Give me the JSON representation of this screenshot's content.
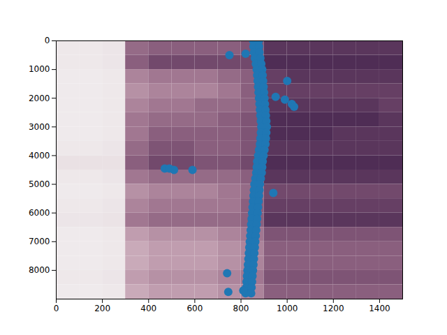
{
  "chart_data": {
    "type": "heatmap",
    "xlim": [
      0,
      1500
    ],
    "xticks": [
      0,
      200,
      400,
      600,
      800,
      1000,
      1200,
      1400
    ],
    "ylim": [
      0,
      9000
    ],
    "yticks": [
      0,
      1000,
      2000,
      3000,
      4000,
      5000,
      6000,
      7000,
      8000
    ],
    "grid": false,
    "cell_range": [
      0,
      1
    ],
    "cells": {
      "x_edges": [
        0,
        100,
        200,
        300,
        400,
        500,
        600,
        700,
        800,
        900,
        1000,
        1100,
        1200,
        1300,
        1400,
        1500
      ],
      "y_edges": [
        0,
        500,
        1000,
        1500,
        2000,
        2500,
        3000,
        3500,
        4000,
        4500,
        5000,
        5500,
        6000,
        6500,
        7000,
        7500,
        8000,
        8500,
        9000
      ],
      "values": [
        [
          0.05,
          0.05,
          0.06,
          0.55,
          0.6,
          0.6,
          0.6,
          0.6,
          0.65,
          0.8,
          0.8,
          0.8,
          0.8,
          0.8,
          0.8
        ],
        [
          0.05,
          0.05,
          0.06,
          0.6,
          0.7,
          0.7,
          0.7,
          0.7,
          0.7,
          0.85,
          0.85,
          0.85,
          0.85,
          0.85,
          0.85
        ],
        [
          0.04,
          0.04,
          0.05,
          0.45,
          0.5,
          0.5,
          0.5,
          0.55,
          0.6,
          0.75,
          0.8,
          0.8,
          0.8,
          0.8,
          0.8
        ],
        [
          0.04,
          0.04,
          0.05,
          0.4,
          0.45,
          0.45,
          0.45,
          0.5,
          0.6,
          0.75,
          0.75,
          0.75,
          0.75,
          0.75,
          0.75
        ],
        [
          0.04,
          0.04,
          0.05,
          0.45,
          0.5,
          0.5,
          0.55,
          0.55,
          0.6,
          0.8,
          0.8,
          0.8,
          0.8,
          0.8,
          0.75
        ],
        [
          0.04,
          0.04,
          0.05,
          0.5,
          0.55,
          0.55,
          0.55,
          0.6,
          0.65,
          0.85,
          0.85,
          0.85,
          0.85,
          0.85,
          0.8
        ],
        [
          0.04,
          0.04,
          0.05,
          0.5,
          0.6,
          0.6,
          0.6,
          0.6,
          0.65,
          0.85,
          0.85,
          0.85,
          0.8,
          0.8,
          0.8
        ],
        [
          0.05,
          0.05,
          0.06,
          0.55,
          0.65,
          0.65,
          0.6,
          0.6,
          0.65,
          0.8,
          0.8,
          0.8,
          0.8,
          0.8,
          0.8
        ],
        [
          0.08,
          0.08,
          0.08,
          0.6,
          0.7,
          0.7,
          0.65,
          0.65,
          0.7,
          0.85,
          0.85,
          0.85,
          0.85,
          0.85,
          0.85
        ],
        [
          0.05,
          0.05,
          0.06,
          0.5,
          0.55,
          0.55,
          0.55,
          0.55,
          0.6,
          0.8,
          0.8,
          0.8,
          0.8,
          0.8,
          0.8
        ],
        [
          0.04,
          0.04,
          0.05,
          0.4,
          0.45,
          0.45,
          0.45,
          0.5,
          0.55,
          0.7,
          0.7,
          0.7,
          0.7,
          0.7,
          0.7
        ],
        [
          0.05,
          0.05,
          0.06,
          0.45,
          0.5,
          0.5,
          0.5,
          0.5,
          0.6,
          0.75,
          0.75,
          0.75,
          0.75,
          0.75,
          0.75
        ],
        [
          0.06,
          0.06,
          0.07,
          0.5,
          0.55,
          0.55,
          0.55,
          0.55,
          0.6,
          0.8,
          0.8,
          0.8,
          0.8,
          0.8,
          0.8
        ],
        [
          0.04,
          0.04,
          0.05,
          0.35,
          0.4,
          0.4,
          0.4,
          0.45,
          0.5,
          0.65,
          0.65,
          0.65,
          0.65,
          0.65,
          0.65
        ],
        [
          0.04,
          0.04,
          0.05,
          0.3,
          0.35,
          0.35,
          0.35,
          0.4,
          0.45,
          0.6,
          0.6,
          0.6,
          0.6,
          0.6,
          0.6
        ],
        [
          0.04,
          0.04,
          0.05,
          0.3,
          0.35,
          0.35,
          0.35,
          0.4,
          0.45,
          0.6,
          0.6,
          0.6,
          0.6,
          0.6,
          0.6
        ],
        [
          0.05,
          0.05,
          0.06,
          0.35,
          0.4,
          0.4,
          0.4,
          0.45,
          0.5,
          0.65,
          0.65,
          0.65,
          0.65,
          0.65,
          0.65
        ],
        [
          0.04,
          0.04,
          0.05,
          0.3,
          0.35,
          0.35,
          0.35,
          0.4,
          0.45,
          0.6,
          0.6,
          0.6,
          0.6,
          0.6,
          0.6
        ]
      ]
    },
    "points": {
      "color": "#1f77b4",
      "marker": "circle",
      "x": [
        853,
        877,
        854,
        878,
        856,
        880,
        860,
        884,
        864,
        888,
        868,
        892,
        870,
        894,
        872,
        896,
        874,
        898,
        876,
        900,
        878,
        902,
        880,
        904,
        882,
        906,
        884,
        908,
        886,
        910,
        888,
        912,
        886,
        910,
        884,
        908,
        882,
        906,
        878,
        902,
        874,
        898,
        870,
        894,
        868,
        892,
        866,
        890,
        862,
        886,
        858,
        882,
        856,
        880,
        854,
        878,
        852,
        876,
        850,
        874,
        848,
        872,
        846,
        870,
        844,
        868,
        842,
        866,
        840,
        864,
        838,
        862,
        836,
        860,
        834,
        858,
        832,
        856,
        830,
        854,
        828,
        852,
        826,
        850,
        824,
        848,
        822,
        846,
        820,
        844,
        750,
        820,
        1000,
        950,
        990,
        1020,
        1030,
        470,
        490,
        510,
        590,
        940,
        740,
        745,
        810
      ],
      "y": [
        0,
        0,
        200,
        200,
        400,
        400,
        600,
        600,
        800,
        800,
        1000,
        1000,
        1200,
        1200,
        1400,
        1400,
        1600,
        1600,
        1800,
        1800,
        2000,
        2000,
        2200,
        2200,
        2400,
        2400,
        2600,
        2600,
        2800,
        2800,
        3000,
        3000,
        3200,
        3200,
        3400,
        3400,
        3600,
        3600,
        3800,
        3800,
        4000,
        4000,
        4200,
        4200,
        4400,
        4400,
        4600,
        4600,
        4800,
        4800,
        5000,
        5000,
        5200,
        5200,
        5400,
        5400,
        5600,
        5600,
        5800,
        5800,
        6000,
        6000,
        6200,
        6200,
        6400,
        6400,
        6600,
        6600,
        6800,
        6800,
        7000,
        7000,
        7200,
        7200,
        7400,
        7400,
        7600,
        7600,
        7800,
        7800,
        8000,
        8000,
        8200,
        8200,
        8400,
        8400,
        8600,
        8600,
        8800,
        8800,
        500,
        450,
        1400,
        1950,
        2050,
        2200,
        2300,
        4450,
        4450,
        4500,
        4500,
        5300,
        8100,
        8750,
        8700
      ]
    }
  }
}
